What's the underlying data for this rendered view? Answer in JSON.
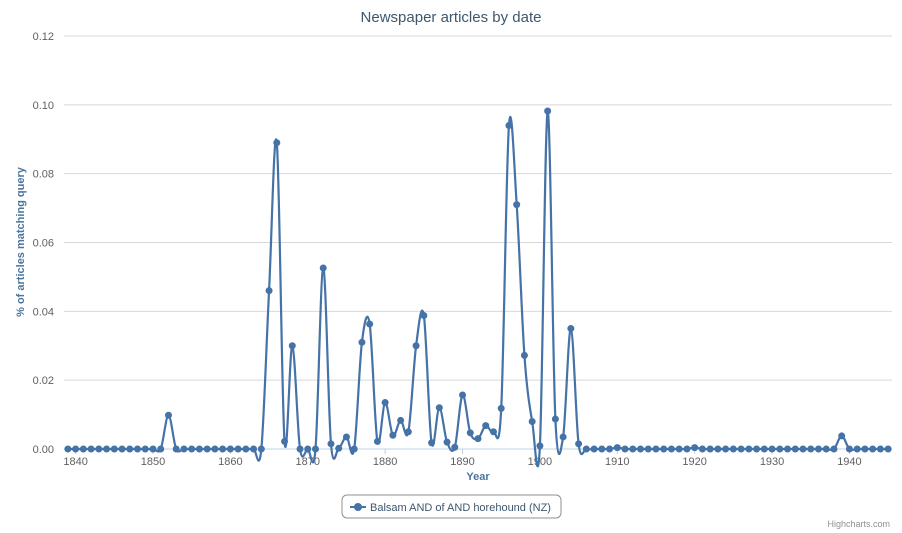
{
  "chart_data": {
    "type": "line",
    "title": "Newspaper articles by date",
    "xlabel": "Year",
    "ylabel": "% of articles matching query",
    "xlim": [
      1838.5,
      1945.5
    ],
    "ylim": [
      0,
      0.12
    ],
    "x_ticks": [
      1840,
      1850,
      1860,
      1870,
      1880,
      1890,
      1900,
      1910,
      1920,
      1930,
      1940
    ],
    "y_ticks": [
      "0.00",
      "0.02",
      "0.04",
      "0.06",
      "0.08",
      "0.10",
      "0.12"
    ],
    "grid": true,
    "legend_position": "bottom-center",
    "series": [
      {
        "name": "Balsam AND of AND horehound (NZ)",
        "color": "#4572a7",
        "x": [
          1839,
          1840,
          1841,
          1842,
          1843,
          1844,
          1845,
          1846,
          1847,
          1848,
          1849,
          1850,
          1851,
          1852,
          1853,
          1854,
          1855,
          1856,
          1857,
          1858,
          1859,
          1860,
          1861,
          1862,
          1863,
          1864,
          1865,
          1866,
          1867,
          1868,
          1869,
          1870,
          1871,
          1872,
          1873,
          1874,
          1875,
          1876,
          1877,
          1878,
          1879,
          1880,
          1881,
          1882,
          1883,
          1884,
          1885,
          1886,
          1887,
          1888,
          1889,
          1890,
          1891,
          1892,
          1893,
          1894,
          1895,
          1896,
          1897,
          1898,
          1899,
          1900,
          1901,
          1902,
          1903,
          1904,
          1905,
          1906,
          1907,
          1908,
          1909,
          1910,
          1911,
          1912,
          1913,
          1914,
          1915,
          1916,
          1917,
          1918,
          1919,
          1920,
          1921,
          1922,
          1923,
          1924,
          1925,
          1926,
          1927,
          1928,
          1929,
          1930,
          1931,
          1932,
          1933,
          1934,
          1935,
          1936,
          1937,
          1938,
          1939,
          1940,
          1941,
          1942,
          1943,
          1944,
          1945
        ],
        "values": [
          0,
          0,
          0,
          0,
          0,
          0,
          0,
          0,
          0,
          0,
          0,
          0,
          0,
          0.0098,
          0,
          0,
          0,
          0,
          0,
          0,
          0,
          0,
          0,
          0,
          0,
          0,
          0.046,
          0.089,
          0.0022,
          0.03,
          0,
          0,
          0,
          0.0526,
          0.0015,
          0.0002,
          0.0035,
          0,
          0.031,
          0.0363,
          0.0022,
          0.0135,
          0.004,
          0.0083,
          0.005,
          0.03,
          0.0388,
          0.0018,
          0.012,
          0.002,
          0.0005,
          0.0157,
          0.0047,
          0.003,
          0.0068,
          0.005,
          0.0118,
          0.094,
          0.071,
          0.0272,
          0.008,
          0.0009,
          0.0982,
          0.0087,
          0.0035,
          0.035,
          0.0015,
          0,
          0,
          0,
          0,
          0.0004,
          0,
          0,
          0,
          0,
          0,
          0,
          0,
          0,
          0,
          0.0004,
          0,
          0,
          0,
          0,
          0,
          0,
          0,
          0,
          0,
          0,
          0,
          0,
          0,
          0,
          0,
          0,
          0,
          0,
          0.0038,
          0,
          0,
          0,
          0,
          0,
          0
        ]
      }
    ]
  },
  "credits": "Highcharts.com"
}
